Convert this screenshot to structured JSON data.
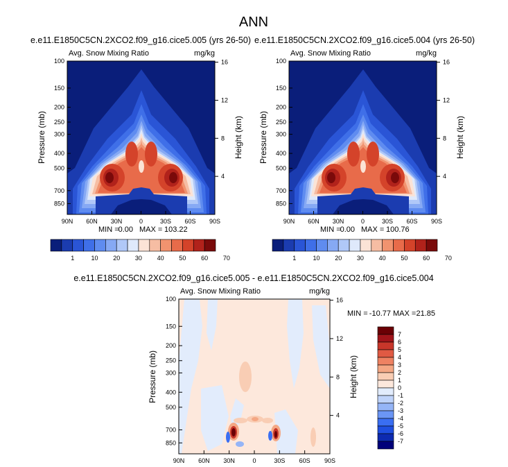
{
  "page_title": "ANN",
  "colors": {
    "control_ramp": [
      "#0a1e7a",
      "#1b3cb0",
      "#2a55d6",
      "#3f6fe8",
      "#5f8cf0",
      "#86a9f4",
      "#b0c8f8",
      "#dfe9fb",
      "#fbe3d6",
      "#f6bda3",
      "#f1936f",
      "#e86b4a",
      "#d4432a",
      "#b1221b",
      "#7a0a0a"
    ],
    "diff_ramp": [
      "#00007a",
      "#0d2ab0",
      "#1f4fe0",
      "#3a6ef2",
      "#6b96f5",
      "#95b5f7",
      "#bfd3fa",
      "#e2ecfc",
      "#fde8dc",
      "#f9cdb4",
      "#f4a784",
      "#ee8262",
      "#e05a43",
      "#c8362a",
      "#a1141a",
      "#6b0005"
    ]
  },
  "chart_data": [
    {
      "type": "heatmap",
      "id": "case",
      "title": "e.e11.E1850C5CN.2XCO2.f09_g16.cice5.005 (yrs 26-50)",
      "variable": "Avg. Snow Mixing Ratio",
      "units": "mg/kg",
      "xlabel": "",
      "ylabel": "Pressure (mb)",
      "y2label": "Height (km)",
      "xticks": [
        "90N",
        "60N",
        "30N",
        "0",
        "30S",
        "60S",
        "90S"
      ],
      "yticks": [
        "100",
        "150",
        "200",
        "250",
        "300",
        "400",
        "500",
        "700",
        "850"
      ],
      "ytick_values": [
        100,
        150,
        200,
        250,
        300,
        400,
        500,
        700,
        850
      ],
      "y2ticks": [
        "16",
        "12",
        "8",
        "4"
      ],
      "y2tick_values": [
        16,
        12,
        8,
        4
      ],
      "ylim": [
        100,
        1000
      ],
      "min_label": "MIN =",
      "min_value": "0.00",
      "max_label": "MAX =",
      "max_value": "103.22",
      "colorbar_labels": [
        "1",
        "10",
        "20",
        "30",
        "40",
        "50",
        "60",
        "70"
      ]
    },
    {
      "type": "heatmap",
      "id": "control",
      "title": "e.e11.E1850C5CN.2XCO2.f09_g16.cice5.004 (yrs 26-50)",
      "variable": "Avg. Snow Mixing Ratio",
      "units": "mg/kg",
      "xlabel": "",
      "ylabel": "Pressure (mb)",
      "y2label": "Height (km)",
      "xticks": [
        "90N",
        "60N",
        "30N",
        "0",
        "30S",
        "60S",
        "90S"
      ],
      "yticks": [
        "100",
        "150",
        "200",
        "250",
        "300",
        "400",
        "500",
        "700",
        "850"
      ],
      "ytick_values": [
        100,
        150,
        200,
        250,
        300,
        400,
        500,
        700,
        850
      ],
      "y2ticks": [
        "16",
        "12",
        "8",
        "4"
      ],
      "y2tick_values": [
        16,
        12,
        8,
        4
      ],
      "ylim": [
        100,
        1000
      ],
      "min_label": "MIN =",
      "min_value": "0.00",
      "max_label": "MAX =",
      "max_value": "100.76",
      "colorbar_labels": [
        "1",
        "10",
        "20",
        "30",
        "40",
        "50",
        "60",
        "70"
      ]
    },
    {
      "type": "heatmap",
      "id": "diff",
      "title": "e.e11.E1850C5CN.2XCO2.f09_g16.cice5.005 - e.e11.E1850C5CN.2XCO2.f09_g16.cice5.004",
      "variable": "Avg. Snow Mixing Ratio",
      "units": "mg/kg",
      "xlabel": "",
      "ylabel": "Pressure (mb)",
      "y2label": "Height (km)",
      "xticks": [
        "90N",
        "60N",
        "30N",
        "0",
        "30S",
        "60S",
        "90S"
      ],
      "yticks": [
        "100",
        "150",
        "200",
        "250",
        "300",
        "400",
        "500",
        "700",
        "850"
      ],
      "ytick_values": [
        100,
        150,
        200,
        250,
        300,
        400,
        500,
        700,
        850
      ],
      "y2ticks": [
        "16",
        "12",
        "8",
        "4"
      ],
      "y2tick_values": [
        16,
        12,
        8,
        4
      ],
      "ylim": [
        100,
        1000
      ],
      "min_label": "MIN =",
      "min_value": "-10.77",
      "max_label": "MAX =",
      "max_value": "21.85",
      "colorbar_labels": [
        "7",
        "6",
        "5",
        "4",
        "3",
        "2",
        "1",
        "0",
        "-1",
        "-2",
        "-3",
        "-4",
        "-5",
        "-6",
        "-7"
      ]
    }
  ]
}
